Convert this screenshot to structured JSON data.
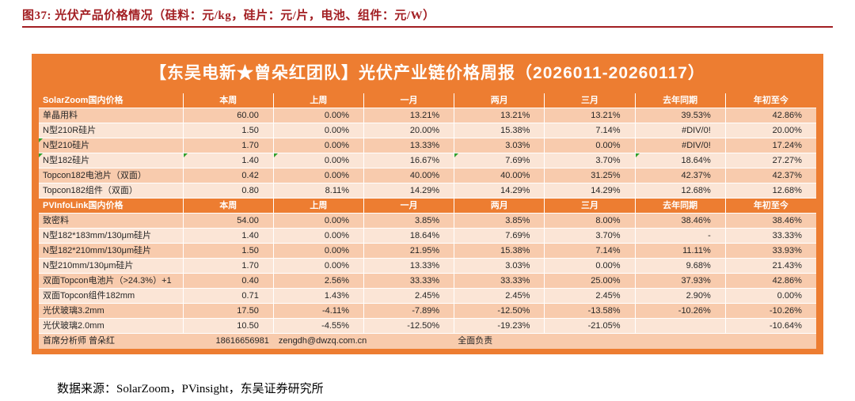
{
  "colors": {
    "accent_orange": "#ED7D31",
    "row_light": "#FBE5D6",
    "row_dark": "#F8CBAD",
    "heading_red": "#A21E22",
    "flag_green": "#33A02C"
  },
  "figure": {
    "title": "图37:  光伏产品价格情况（硅料：元/kg，硅片：元/片，电池、组件：元/W）",
    "source": "数据来源：SolarZoom，PVinsight，东吴证券研究所"
  },
  "table": {
    "title": "【东吴电新★曾朵红团队】光伏产业链价格周报（2026011-20260117）",
    "sections": [
      {
        "header": [
          "SolarZoom国内价格",
          "本周",
          "上周",
          "一月",
          "两月",
          "三月",
          "去年同期",
          "年初至今"
        ],
        "rows": [
          {
            "cells": [
              "单晶用料",
              "60.00",
              "0.00%",
              "13.21%",
              "13.21%",
              "13.21%",
              "39.53%",
              "42.86%"
            ],
            "flags": []
          },
          {
            "cells": [
              "N型210R硅片",
              "1.50",
              "0.00%",
              "20.00%",
              "15.38%",
              "7.14%",
              "#DIV/0!",
              "20.00%"
            ],
            "flags": []
          },
          {
            "cells": [
              "N型210硅片",
              "1.70",
              "0.00%",
              "13.33%",
              "3.03%",
              "0.00%",
              "#DIV/0!",
              "17.24%"
            ],
            "flags": [
              0
            ]
          },
          {
            "cells": [
              "N型182硅片",
              "1.40",
              "0.00%",
              "16.67%",
              "7.69%",
              "3.70%",
              "18.64%",
              "27.27%"
            ],
            "flags": [
              0,
              1,
              2,
              4,
              6
            ]
          },
          {
            "cells": [
              "Topcon182电池片（双面）",
              "0.42",
              "0.00%",
              "40.00%",
              "40.00%",
              "31.25%",
              "42.37%",
              "42.37%"
            ],
            "flags": []
          },
          {
            "cells": [
              "Topcon182组件（双面）",
              "0.80",
              "8.11%",
              "14.29%",
              "14.29%",
              "14.29%",
              "12.68%",
              "12.68%"
            ],
            "flags": []
          }
        ]
      },
      {
        "header": [
          "PVInfoLink国内价格",
          "本周",
          "上周",
          "一月",
          "两月",
          "三月",
          "去年同期",
          "年初至今"
        ],
        "rows": [
          {
            "cells": [
              "致密料",
              "54.00",
              "0.00%",
              "3.85%",
              "3.85%",
              "8.00%",
              "38.46%",
              "38.46%"
            ],
            "flags": []
          },
          {
            "cells": [
              "N型182*183mm/130μm硅片",
              "1.40",
              "0.00%",
              "18.64%",
              "7.69%",
              "3.70%",
              "-",
              "33.33%"
            ],
            "flags": []
          },
          {
            "cells": [
              "N型182*210mm/130μm硅片",
              "1.50",
              "0.00%",
              "21.95%",
              "15.38%",
              "7.14%",
              "11.11%",
              "33.93%"
            ],
            "flags": []
          },
          {
            "cells": [
              "N型210mm/130μm硅片",
              "1.70",
              "0.00%",
              "13.33%",
              "3.03%",
              "0.00%",
              "9.68%",
              "21.43%"
            ],
            "flags": []
          },
          {
            "cells": [
              "双面Topcon电池片（>24.3%）+1",
              "0.40",
              "2.56%",
              "33.33%",
              "33.33%",
              "25.00%",
              "37.93%",
              "42.86%"
            ],
            "flags": []
          },
          {
            "cells": [
              "双面Topcon组件182mm",
              "0.71",
              "1.43%",
              "2.45%",
              "2.45%",
              "2.45%",
              "2.90%",
              "0.00%"
            ],
            "flags": []
          },
          {
            "cells": [
              "光伏玻璃3.2mm",
              "17.50",
              "-4.11%",
              "-7.89%",
              "-12.50%",
              "-13.58%",
              "-10.26%",
              "-10.26%"
            ],
            "flags": []
          },
          {
            "cells": [
              "光伏玻璃2.0mm",
              "10.50",
              "-4.55%",
              "-12.50%",
              "-19.23%",
              "-21.05%",
              "",
              "-10.64%"
            ],
            "flags": []
          }
        ]
      }
    ],
    "footer": {
      "analyst": "首席分析师  曾朵红",
      "phone": "18616656981",
      "email": "zengdh@dwzq.com.cn",
      "role": "全面负责"
    }
  }
}
